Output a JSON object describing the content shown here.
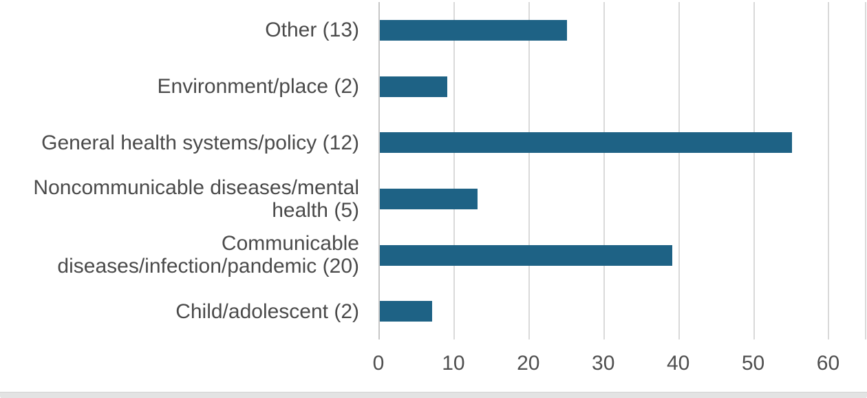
{
  "chart_data": {
    "type": "bar",
    "orientation": "horizontal",
    "title": "",
    "xlabel": "",
    "ylabel": "",
    "categories": [
      "Other (13)",
      "Environment/place (2)",
      "General health systems/policy (12)",
      "Noncommunicable diseases/mental health (5)",
      "Communicable diseases/infection/pandemic (20)",
      "Child/adolescent (2)"
    ],
    "category_label_lines": [
      [
        "Other (13)"
      ],
      [
        "Environment/place (2)"
      ],
      [
        "General health systems/policy (12)"
      ],
      [
        "Noncommunicable diseases/mental",
        "health (5)"
      ],
      [
        "Communicable",
        "diseases/infection/pandemic (20)"
      ],
      [
        "Child/adolescent (2)"
      ]
    ],
    "values": [
      25,
      9,
      55,
      13,
      39,
      7
    ],
    "x_ticks": [
      0,
      10,
      20,
      30,
      40,
      50,
      60
    ],
    "xlim": [
      0,
      65.1
    ],
    "grid": true,
    "legend": false,
    "colors": {
      "bar": "#1e6285",
      "gridline": "#d9d9d9",
      "zero_line": "#c6c6c6",
      "category_label": "#4a4a4a",
      "tick_label": "#4f4f4f",
      "bottom_band": "#e3e3e3"
    }
  }
}
